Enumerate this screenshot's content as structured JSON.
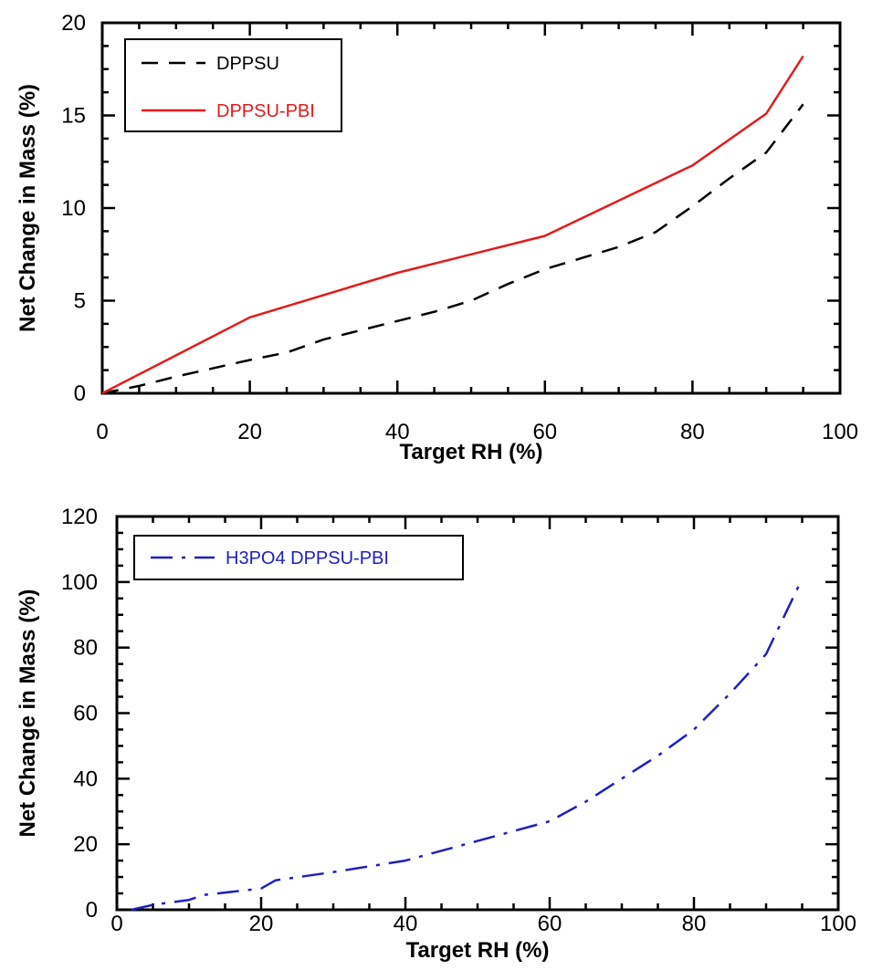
{
  "chart_data": [
    {
      "type": "line",
      "xlabel": "Target RH (%)",
      "ylabel": "Net Change in Mass (%)",
      "xlim": [
        0,
        100
      ],
      "ylim": [
        0,
        20
      ],
      "x_ticks": [
        "0",
        "20",
        "40",
        "60",
        "80",
        "100"
      ],
      "y_ticks": [
        "0",
        "5",
        "10",
        "15",
        "20"
      ],
      "grid": false,
      "legend_position": "top-left",
      "series": [
        {
          "name": "DPPSU",
          "color": "#000000",
          "dash": "dashed",
          "x": [
            0,
            5,
            10,
            20,
            25,
            30,
            40,
            45,
            50,
            55,
            60,
            70,
            75,
            80,
            85,
            90,
            95
          ],
          "y": [
            0,
            0.4,
            0.9,
            1.8,
            2.2,
            2.9,
            3.9,
            4.4,
            5.0,
            5.9,
            6.7,
            7.9,
            8.7,
            10.1,
            11.6,
            13.0,
            15.6
          ]
        },
        {
          "name": "DPPSU-PBI",
          "color": "#e31a1c",
          "dash": "solid",
          "x": [
            0,
            20,
            40,
            60,
            80,
            90,
            95
          ],
          "y": [
            0,
            4.1,
            6.5,
            8.5,
            12.3,
            15.1,
            18.2
          ]
        }
      ]
    },
    {
      "type": "line",
      "xlabel": "Target RH (%)",
      "ylabel": "Net Change in Mass (%)",
      "xlim": [
        0,
        100
      ],
      "ylim": [
        0,
        120
      ],
      "x_ticks": [
        "0",
        "20",
        "40",
        "60",
        "80",
        "100"
      ],
      "y_ticks": [
        "0",
        "20",
        "40",
        "60",
        "80",
        "100",
        "120"
      ],
      "grid": false,
      "legend_position": "top-left",
      "series": [
        {
          "name": "H3PO4 DPPSU-PBI",
          "color": "#1f1fbf",
          "dash": "dash-dot",
          "x": [
            2,
            5,
            10,
            12,
            20,
            22,
            30,
            40,
            50,
            55,
            60,
            65,
            70,
            75,
            80,
            85,
            90,
            95
          ],
          "y": [
            0,
            1.5,
            3,
            4.5,
            6.5,
            9,
            11.5,
            15,
            21,
            24,
            27,
            33,
            40,
            47,
            55,
            66,
            78,
            101
          ]
        }
      ]
    }
  ]
}
